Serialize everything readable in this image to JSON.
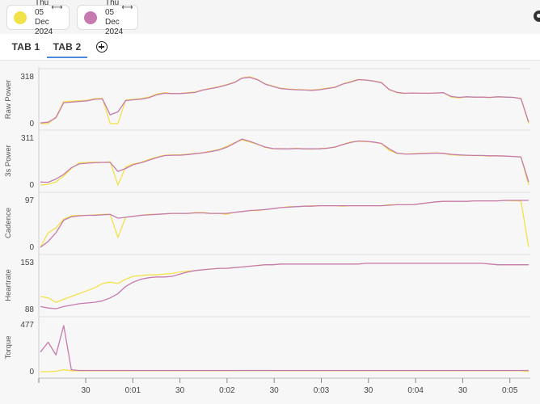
{
  "comparison": [
    {
      "line1": "Thu 05",
      "line2": "Dec 2024",
      "color": "#f2e24a"
    },
    {
      "line1": "Thu 05",
      "line2": "Dec 2024",
      "color": "#c77aaf"
    }
  ],
  "tabs": [
    {
      "label": "TAB 1",
      "active": false
    },
    {
      "label": "TAB 2",
      "active": true
    }
  ],
  "icons": {
    "add_tab": "plus-circle-icon",
    "arrow": "left-right-arrow-icon",
    "corner": "settings-icon"
  },
  "chart_data": {
    "type": "line",
    "x_ticks": [
      "30",
      "0:01",
      "30",
      "0:02",
      "30",
      "0:03",
      "30",
      "0:04",
      "30",
      "0:05"
    ],
    "series_colors": [
      "#f2e24a",
      "#c77aaf"
    ],
    "panels": [
      {
        "ylabel": "Raw Power",
        "ymax_label": "318",
        "ymin_label": "0",
        "ylim": [
          0,
          318
        ],
        "series": [
          {
            "values": [
              0,
              0,
              45,
              150,
              152,
              155,
              158,
              170,
              172,
              0,
              0,
              160,
              165,
              170,
              180,
              200,
              210,
              205,
              205,
              210,
              215,
              230,
              240,
              250,
              265,
              280,
              310,
              318,
              300,
              270,
              255,
              240,
              235,
              232,
              230,
              228,
              232,
              240,
              248,
              270,
              285,
              300,
              295,
              290,
              280,
              230,
              210,
              205,
              208,
              206,
              205,
              208,
              210,
              180,
              175,
              182,
              178,
              180,
              176,
              182,
              180,
              178,
              172,
              0
            ]
          },
          {
            "values": [
              5,
              10,
              40,
              142,
              146,
              150,
              154,
              165,
              168,
              60,
              80,
              156,
              162,
              166,
              176,
              196,
              206,
              204,
              204,
              208,
              212,
              228,
              238,
              248,
              262,
              278,
              308,
              314,
              298,
              268,
              252,
              238,
              233,
              230,
              228,
              226,
              230,
              238,
              246,
              268,
              282,
              298,
              296,
              288,
              278,
              232,
              212,
              206,
              208,
              206,
              206,
              208,
              210,
              184,
              178,
              182,
              180,
              180,
              178,
              182,
              180,
              178,
              170,
              10
            ]
          }
        ]
      },
      {
        "ylabel": "3s Power",
        "ymax_label": "311",
        "ymin_label": "0",
        "ylim": [
          0,
          311
        ],
        "series": [
          {
            "values": [
              0,
              5,
              20,
              60,
              110,
              148,
              150,
              152,
              150,
              155,
              0,
              120,
              140,
              150,
              170,
              185,
              198,
              200,
              200,
              205,
              210,
              215,
              225,
              235,
              255,
              280,
              300,
              285,
              270,
              250,
              240,
              242,
              240,
              244,
              240,
              238,
              242,
              246,
              250,
              270,
              285,
              290,
              288,
              284,
              275,
              230,
              210,
              206,
              208,
              210,
              212,
              214,
              210,
              200,
              198,
              196,
              195,
              195,
              192,
              194,
              192,
              190,
              186,
              0
            ]
          },
          {
            "values": [
              20,
              18,
              40,
              70,
              115,
              140,
              145,
              148,
              150,
              150,
              90,
              110,
              135,
              148,
              165,
              182,
              195,
              198,
              198,
              202,
              208,
              214,
              222,
              232,
              250,
              276,
              305,
              290,
              272,
              252,
              242,
              240,
              240,
              242,
              240,
              240,
              240,
              244,
              252,
              268,
              282,
              292,
              290,
              285,
              276,
              240,
              212,
              206,
              206,
              208,
              210,
              212,
              210,
              204,
              200,
              198,
              196,
              196,
              194,
              194,
              192,
              190,
              186,
              20
            ]
          }
        ]
      },
      {
        "ylabel": "Cadence",
        "ymax_label": "97",
        "ymin_label": "0",
        "ylim": [
          0,
          97
        ],
        "series": [
          {
            "values": [
              0,
              30,
              40,
              58,
              65,
              66,
              66,
              67,
              68,
              68,
              20,
              62,
              64,
              66,
              68,
              68,
              69,
              70,
              70,
              70,
              72,
              72,
              70,
              70,
              68,
              72,
              74,
              76,
              76,
              78,
              80,
              82,
              84,
              84,
              85,
              86,
              86,
              86,
              86,
              85,
              86,
              86,
              86,
              86,
              86,
              88,
              88,
              88,
              88,
              90,
              92,
              94,
              95,
              95,
              95,
              95,
              96,
              96,
              96,
              96,
              97,
              96,
              96,
              0
            ]
          },
          {
            "values": [
              0,
              12,
              30,
              56,
              63,
              65,
              66,
              66,
              67,
              68,
              60,
              62,
              64,
              66,
              67,
              68,
              69,
              70,
              70,
              70,
              71,
              71,
              70,
              70,
              70,
              72,
              74,
              76,
              77,
              78,
              80,
              82,
              83,
              84,
              85,
              85,
              86,
              86,
              86,
              86,
              86,
              86,
              86,
              86,
              86,
              87,
              88,
              88,
              88,
              90,
              92,
              94,
              95,
              95,
              95,
              95,
              96,
              96,
              96,
              96,
              97,
              97,
              97,
              97
            ]
          }
        ]
      },
      {
        "ylabel": "Heartrate",
        "ymax_label": "153",
        "ymin_label": "88",
        "ylim": [
          88,
          153
        ],
        "series": [
          {
            "values": [
              106,
              104,
              98,
              102,
              106,
              110,
              114,
              118,
              124,
              126,
              124,
              130,
              134,
              135,
              136,
              136,
              137,
              138,
              140,
              141,
              142,
              143,
              144,
              145,
              145,
              146,
              147,
              148,
              149,
              150,
              150,
              151,
              151,
              151,
              151,
              151,
              151,
              151,
              151,
              151,
              151,
              151,
              152,
              152,
              152,
              152,
              152,
              152,
              152,
              152,
              152,
              152,
              152,
              152,
              152,
              152,
              152,
              152,
              151,
              150,
              150,
              150,
              150,
              150
            ]
          },
          {
            "values": [
              92,
              90,
              89,
              92,
              94,
              96,
              97,
              98,
              100,
              104,
              110,
              120,
              126,
              130,
              132,
              133,
              133,
              134,
              137,
              140,
              142,
              143,
              144,
              145,
              145,
              146,
              147,
              148,
              149,
              150,
              150,
              151,
              151,
              151,
              151,
              151,
              151,
              151,
              151,
              151,
              151,
              151,
              152,
              152,
              152,
              152,
              152,
              152,
              152,
              152,
              152,
              152,
              152,
              152,
              152,
              152,
              152,
              152,
              151,
              150,
              150,
              150,
              150,
              150
            ]
          }
        ]
      },
      {
        "ylabel": "Torque",
        "ymax_label": "477",
        "ymin_label": "0",
        "ylim": [
          0,
          477
        ],
        "series": [
          {
            "values": [
              0,
              0,
              5,
              20,
              10,
              8,
              8,
              8,
              8,
              8,
              8,
              9,
              9,
              9,
              9,
              10,
              10,
              10,
              10,
              10,
              10,
              10,
              10,
              10,
              10,
              10,
              11,
              11,
              11,
              11,
              10,
              10,
              10,
              10,
              10,
              10,
              10,
              10,
              10,
              10,
              10,
              10,
              10,
              10,
              10,
              10,
              10,
              10,
              10,
              10,
              10,
              10,
              10,
              10,
              10,
              10,
              10,
              10,
              10,
              10,
              10,
              10,
              10,
              0
            ]
          },
          {
            "values": [
              200,
              300,
              170,
              470,
              20,
              12,
              12,
              12,
              12,
              12,
              12,
              12,
              12,
              12,
              12,
              12,
              12,
              12,
              12,
              12,
              12,
              12,
              12,
              12,
              12,
              12,
              12,
              12,
              12,
              12,
              12,
              12,
              12,
              12,
              12,
              12,
              12,
              12,
              12,
              12,
              12,
              12,
              12,
              12,
              12,
              12,
              12,
              12,
              12,
              12,
              12,
              12,
              12,
              12,
              12,
              12,
              12,
              12,
              12,
              12,
              12,
              12,
              12,
              12
            ]
          }
        ]
      }
    ]
  }
}
